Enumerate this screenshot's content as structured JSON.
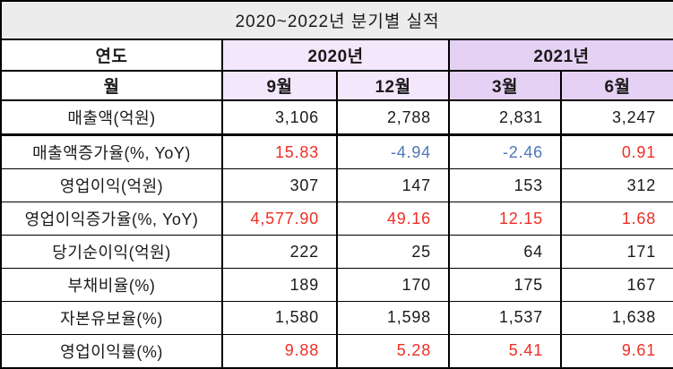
{
  "chart_data": {
    "type": "table",
    "title": "2020~2022년  분기별  실적",
    "header": {
      "year_label": "연도",
      "month_label": "월",
      "year_groups": [
        {
          "year": "2020년",
          "months": [
            "9월",
            "12월"
          ]
        },
        {
          "year": "2021년",
          "months": [
            "3월",
            "6월"
          ]
        }
      ]
    },
    "rows": [
      {
        "label": "매출액(억원)",
        "values": [
          "3,106",
          "2,788",
          "2,831",
          "3,247"
        ],
        "value_colors": [
          "black",
          "black",
          "black",
          "black"
        ]
      },
      {
        "label": "매출액증가율(%, YoY)",
        "values": [
          "15.83",
          "-4.94",
          "-2.46",
          "0.91"
        ],
        "value_colors": [
          "red",
          "blue",
          "blue",
          "red"
        ]
      },
      {
        "label": "영업이익(억원)",
        "values": [
          "307",
          "147",
          "153",
          "312"
        ],
        "value_colors": [
          "black",
          "black",
          "black",
          "black"
        ]
      },
      {
        "label": "영업이익증가율(%, YoY)",
        "values": [
          "4,577.90",
          "49.16",
          "12.15",
          "1.68"
        ],
        "value_colors": [
          "red",
          "red",
          "red",
          "red"
        ]
      },
      {
        "label": "당기순이익(억원)",
        "values": [
          "222",
          "25",
          "64",
          "171"
        ],
        "value_colors": [
          "black",
          "black",
          "black",
          "black"
        ]
      },
      {
        "label": "부채비율(%)",
        "values": [
          "189",
          "170",
          "175",
          "167"
        ],
        "value_colors": [
          "black",
          "black",
          "black",
          "black"
        ]
      },
      {
        "label": "자본유보율(%)",
        "values": [
          "1,580",
          "1,598",
          "1,537",
          "1,638"
        ],
        "value_colors": [
          "black",
          "black",
          "black",
          "black"
        ]
      },
      {
        "label": "영업이익률(%)",
        "values": [
          "9.88",
          "5.28",
          "5.41",
          "9.61"
        ],
        "value_colors": [
          "red",
          "red",
          "red",
          "red"
        ]
      }
    ]
  },
  "colors": {
    "title_bg": "#ececec",
    "group_2020_bg": "#f3e7fc",
    "group_2021_bg": "#e5d1f3",
    "positive_red": "#ed2e24",
    "negative_blue": "#4f77b5",
    "text_black": "#1a1a1a",
    "border": "#000000"
  }
}
